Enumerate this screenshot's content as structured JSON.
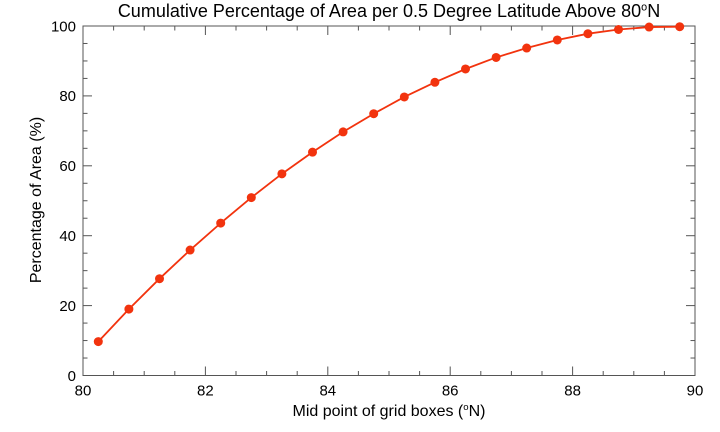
{
  "page": {
    "background_color": "#ffffff",
    "text_color": "#000000"
  },
  "chart_data": {
    "type": "line",
    "title": {
      "main": "Cumulative Percentage of Area per 0.5 Degree Latitude Above 80",
      "deg": "o",
      "suffix": "N"
    },
    "xlabel": {
      "main": "Mid point of grid boxes (",
      "deg": "o",
      "suffix": "N)"
    },
    "ylabel": "Percentage of Area (%)",
    "xlim": [
      80,
      90
    ],
    "ylim": [
      0,
      100
    ],
    "x_major_ticks": [
      80,
      82,
      84,
      86,
      88,
      90
    ],
    "x_minor_step": 0.5,
    "y_major_ticks": [
      0,
      20,
      40,
      60,
      80,
      100
    ],
    "y_minor_step": 5,
    "grid": false,
    "legend": "none",
    "frame_color": "#555555",
    "series": [
      {
        "name": "cumulative-area-percentage",
        "color": "#f2330e",
        "marker": "filled-circle",
        "x": [
          80.25,
          80.75,
          81.25,
          81.75,
          82.25,
          82.75,
          83.25,
          83.75,
          84.25,
          84.75,
          85.25,
          85.75,
          86.25,
          86.75,
          87.25,
          87.75,
          88.25,
          88.75,
          89.25,
          89.75
        ],
        "y": [
          9.7,
          19.0,
          27.7,
          35.9,
          43.6,
          50.9,
          57.7,
          63.9,
          69.7,
          74.9,
          79.7,
          83.9,
          87.7,
          91.0,
          93.7,
          96.0,
          97.8,
          99.0,
          99.7,
          99.8
        ]
      }
    ]
  }
}
